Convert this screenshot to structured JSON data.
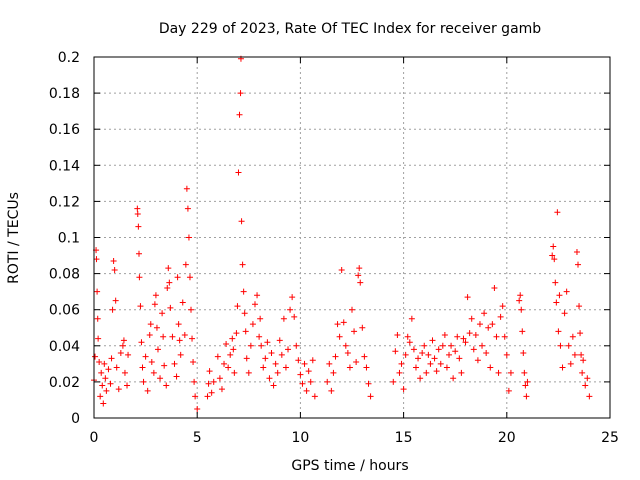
{
  "chart_data": {
    "type": "scatter",
    "title": "Day 229 of 2023, Rate Of TEC Index for receiver gamb",
    "xlabel": "GPS time / hours",
    "ylabel": "ROTI / TECUs",
    "xlim": [
      0,
      25
    ],
    "ylim": [
      0,
      0.2
    ],
    "grid": true,
    "marker": "+",
    "x_ticks": [
      0,
      5,
      10,
      15,
      20,
      25
    ],
    "x_tick_labels": [
      "0",
      "5",
      "10",
      "15",
      "20",
      "25"
    ],
    "y_ticks": [
      0,
      0.02,
      0.04,
      0.06,
      0.08,
      0.1,
      0.12,
      0.14,
      0.16,
      0.18,
      0.2
    ],
    "y_tick_labels": [
      "0",
      "0.02",
      "0.04",
      "0.06",
      "0.08",
      "0.1",
      "0.12",
      "0.14",
      "0.16",
      "0.18",
      "0.2"
    ],
    "series": [
      {
        "name": "ROTI",
        "color": "#ff0000",
        "points": [
          [
            0.0,
            0.021
          ],
          [
            0.05,
            0.034
          ],
          [
            0.1,
            0.093
          ],
          [
            0.12,
            0.088
          ],
          [
            0.15,
            0.07
          ],
          [
            0.18,
            0.055
          ],
          [
            0.2,
            0.044
          ],
          [
            0.25,
            0.031
          ],
          [
            0.3,
            0.012
          ],
          [
            0.35,
            0.025
          ],
          [
            0.4,
            0.018
          ],
          [
            0.45,
            0.008
          ],
          [
            0.5,
            0.03
          ],
          [
            0.55,
            0.022
          ],
          [
            0.6,
            0.015
          ],
          [
            0.7,
            0.027
          ],
          [
            0.8,
            0.019
          ],
          [
            0.85,
            0.033
          ],
          [
            0.9,
            0.06
          ],
          [
            0.95,
            0.087
          ],
          [
            1.0,
            0.082
          ],
          [
            1.05,
            0.065
          ],
          [
            1.1,
            0.028
          ],
          [
            1.2,
            0.016
          ],
          [
            1.3,
            0.036
          ],
          [
            1.4,
            0.04
          ],
          [
            1.45,
            0.043
          ],
          [
            1.5,
            0.025
          ],
          [
            1.6,
            0.018
          ],
          [
            1.65,
            0.035
          ],
          [
            2.1,
            0.116
          ],
          [
            2.12,
            0.113
          ],
          [
            2.15,
            0.106
          ],
          [
            2.18,
            0.091
          ],
          [
            2.2,
            0.078
          ],
          [
            2.25,
            0.062
          ],
          [
            2.3,
            0.042
          ],
          [
            2.35,
            0.028
          ],
          [
            2.4,
            0.02
          ],
          [
            2.5,
            0.034
          ],
          [
            2.6,
            0.015
          ],
          [
            2.7,
            0.046
          ],
          [
            2.75,
            0.052
          ],
          [
            2.8,
            0.031
          ],
          [
            2.9,
            0.025
          ],
          [
            2.95,
            0.063
          ],
          [
            3.0,
            0.068
          ],
          [
            3.05,
            0.05
          ],
          [
            3.1,
            0.038
          ],
          [
            3.2,
            0.022
          ],
          [
            3.3,
            0.058
          ],
          [
            3.35,
            0.045
          ],
          [
            3.4,
            0.029
          ],
          [
            3.5,
            0.018
          ],
          [
            3.55,
            0.072
          ],
          [
            3.6,
            0.083
          ],
          [
            3.65,
            0.075
          ],
          [
            3.7,
            0.061
          ],
          [
            3.8,
            0.045
          ],
          [
            3.9,
            0.03
          ],
          [
            4.0,
            0.023
          ],
          [
            4.05,
            0.078
          ],
          [
            4.1,
            0.052
          ],
          [
            4.15,
            0.043
          ],
          [
            4.2,
            0.035
          ],
          [
            4.3,
            0.064
          ],
          [
            4.4,
            0.046
          ],
          [
            4.45,
            0.085
          ],
          [
            4.5,
            0.127
          ],
          [
            4.55,
            0.116
          ],
          [
            4.6,
            0.1
          ],
          [
            4.65,
            0.078
          ],
          [
            4.7,
            0.06
          ],
          [
            4.75,
            0.044
          ],
          [
            4.8,
            0.031
          ],
          [
            4.85,
            0.02
          ],
          [
            4.9,
            0.012
          ],
          [
            5.0,
            0.005
          ],
          [
            5.5,
            0.012
          ],
          [
            5.55,
            0.019
          ],
          [
            5.6,
            0.026
          ],
          [
            5.7,
            0.014
          ],
          [
            5.8,
            0.02
          ],
          [
            6.0,
            0.034
          ],
          [
            6.1,
            0.022
          ],
          [
            6.2,
            0.016
          ],
          [
            6.3,
            0.03
          ],
          [
            6.4,
            0.041
          ],
          [
            6.5,
            0.028
          ],
          [
            6.6,
            0.035
          ],
          [
            6.7,
            0.044
          ],
          [
            6.75,
            0.038
          ],
          [
            6.8,
            0.025
          ],
          [
            6.9,
            0.047
          ],
          [
            6.95,
            0.062
          ],
          [
            7.0,
            0.136
          ],
          [
            7.05,
            0.168
          ],
          [
            7.1,
            0.18
          ],
          [
            7.12,
            0.199
          ],
          [
            7.15,
            0.109
          ],
          [
            7.2,
            0.085
          ],
          [
            7.25,
            0.07
          ],
          [
            7.3,
            0.058
          ],
          [
            7.35,
            0.048
          ],
          [
            7.4,
            0.033
          ],
          [
            7.5,
            0.025
          ],
          [
            7.6,
            0.04
          ],
          [
            7.7,
            0.052
          ],
          [
            7.8,
            0.063
          ],
          [
            7.9,
            0.068
          ],
          [
            8.0,
            0.045
          ],
          [
            8.05,
            0.055
          ],
          [
            8.1,
            0.04
          ],
          [
            8.2,
            0.028
          ],
          [
            8.3,
            0.033
          ],
          [
            8.4,
            0.042
          ],
          [
            8.5,
            0.022
          ],
          [
            8.6,
            0.036
          ],
          [
            8.7,
            0.018
          ],
          [
            8.8,
            0.03
          ],
          [
            8.9,
            0.025
          ],
          [
            9.0,
            0.043
          ],
          [
            9.1,
            0.035
          ],
          [
            9.2,
            0.055
          ],
          [
            9.3,
            0.028
          ],
          [
            9.4,
            0.038
          ],
          [
            9.5,
            0.06
          ],
          [
            9.6,
            0.067
          ],
          [
            9.7,
            0.056
          ],
          [
            9.8,
            0.04
          ],
          [
            9.9,
            0.032
          ],
          [
            10.0,
            0.024
          ],
          [
            10.1,
            0.019
          ],
          [
            10.2,
            0.03
          ],
          [
            10.3,
            0.015
          ],
          [
            10.4,
            0.026
          ],
          [
            10.5,
            0.02
          ],
          [
            10.6,
            0.032
          ],
          [
            10.7,
            0.012
          ],
          [
            11.3,
            0.02
          ],
          [
            11.4,
            0.03
          ],
          [
            11.5,
            0.015
          ],
          [
            11.6,
            0.025
          ],
          [
            11.7,
            0.034
          ],
          [
            11.8,
            0.052
          ],
          [
            11.9,
            0.045
          ],
          [
            12.0,
            0.082
          ],
          [
            12.1,
            0.053
          ],
          [
            12.2,
            0.04
          ],
          [
            12.3,
            0.036
          ],
          [
            12.4,
            0.028
          ],
          [
            12.5,
            0.06
          ],
          [
            12.6,
            0.048
          ],
          [
            12.7,
            0.031
          ],
          [
            12.8,
            0.079
          ],
          [
            12.85,
            0.083
          ],
          [
            12.9,
            0.075
          ],
          [
            13.0,
            0.05
          ],
          [
            13.1,
            0.034
          ],
          [
            13.2,
            0.028
          ],
          [
            13.3,
            0.019
          ],
          [
            13.4,
            0.012
          ],
          [
            14.5,
            0.02
          ],
          [
            14.6,
            0.037
          ],
          [
            14.7,
            0.046
          ],
          [
            14.8,
            0.025
          ],
          [
            14.9,
            0.03
          ],
          [
            15.0,
            0.016
          ],
          [
            15.1,
            0.035
          ],
          [
            15.2,
            0.045
          ],
          [
            15.3,
            0.042
          ],
          [
            15.4,
            0.055
          ],
          [
            15.5,
            0.038
          ],
          [
            15.6,
            0.028
          ],
          [
            15.7,
            0.033
          ],
          [
            15.8,
            0.022
          ],
          [
            15.9,
            0.036
          ],
          [
            16.0,
            0.04
          ],
          [
            16.1,
            0.025
          ],
          [
            16.2,
            0.035
          ],
          [
            16.3,
            0.03
          ],
          [
            16.4,
            0.043
          ],
          [
            16.5,
            0.033
          ],
          [
            16.6,
            0.026
          ],
          [
            16.7,
            0.038
          ],
          [
            16.8,
            0.03
          ],
          [
            16.9,
            0.04
          ],
          [
            17.0,
            0.046
          ],
          [
            17.1,
            0.028
          ],
          [
            17.2,
            0.035
          ],
          [
            17.3,
            0.04
          ],
          [
            17.4,
            0.022
          ],
          [
            17.5,
            0.037
          ],
          [
            17.6,
            0.045
          ],
          [
            17.7,
            0.033
          ],
          [
            17.8,
            0.025
          ],
          [
            17.9,
            0.044
          ],
          [
            18.0,
            0.042
          ],
          [
            18.1,
            0.067
          ],
          [
            18.2,
            0.047
          ],
          [
            18.3,
            0.055
          ],
          [
            18.4,
            0.038
          ],
          [
            18.5,
            0.046
          ],
          [
            18.6,
            0.032
          ],
          [
            18.7,
            0.052
          ],
          [
            18.8,
            0.04
          ],
          [
            18.9,
            0.058
          ],
          [
            19.0,
            0.036
          ],
          [
            19.1,
            0.05
          ],
          [
            19.2,
            0.028
          ],
          [
            19.3,
            0.052
          ],
          [
            19.4,
            0.072
          ],
          [
            19.5,
            0.045
          ],
          [
            19.6,
            0.025
          ],
          [
            19.7,
            0.056
          ],
          [
            19.8,
            0.062
          ],
          [
            19.9,
            0.045
          ],
          [
            20.0,
            0.035
          ],
          [
            20.1,
            0.015
          ],
          [
            20.2,
            0.025
          ],
          [
            20.6,
            0.065
          ],
          [
            20.65,
            0.068
          ],
          [
            20.7,
            0.06
          ],
          [
            20.75,
            0.048
          ],
          [
            20.8,
            0.036
          ],
          [
            20.85,
            0.025
          ],
          [
            20.9,
            0.018
          ],
          [
            20.95,
            0.012
          ],
          [
            21.0,
            0.02
          ],
          [
            22.2,
            0.09
          ],
          [
            22.25,
            0.095
          ],
          [
            22.3,
            0.088
          ],
          [
            22.35,
            0.075
          ],
          [
            22.4,
            0.064
          ],
          [
            22.45,
            0.114
          ],
          [
            22.5,
            0.048
          ],
          [
            22.55,
            0.068
          ],
          [
            22.6,
            0.04
          ],
          [
            22.7,
            0.028
          ],
          [
            22.8,
            0.058
          ],
          [
            22.9,
            0.07
          ],
          [
            23.0,
            0.04
          ],
          [
            23.1,
            0.03
          ],
          [
            23.2,
            0.045
          ],
          [
            23.3,
            0.035
          ],
          [
            23.4,
            0.092
          ],
          [
            23.45,
            0.085
          ],
          [
            23.5,
            0.062
          ],
          [
            23.55,
            0.047
          ],
          [
            23.6,
            0.035
          ],
          [
            23.65,
            0.025
          ],
          [
            23.7,
            0.032
          ],
          [
            23.8,
            0.018
          ],
          [
            23.9,
            0.022
          ],
          [
            24.0,
            0.012
          ]
        ]
      }
    ]
  }
}
